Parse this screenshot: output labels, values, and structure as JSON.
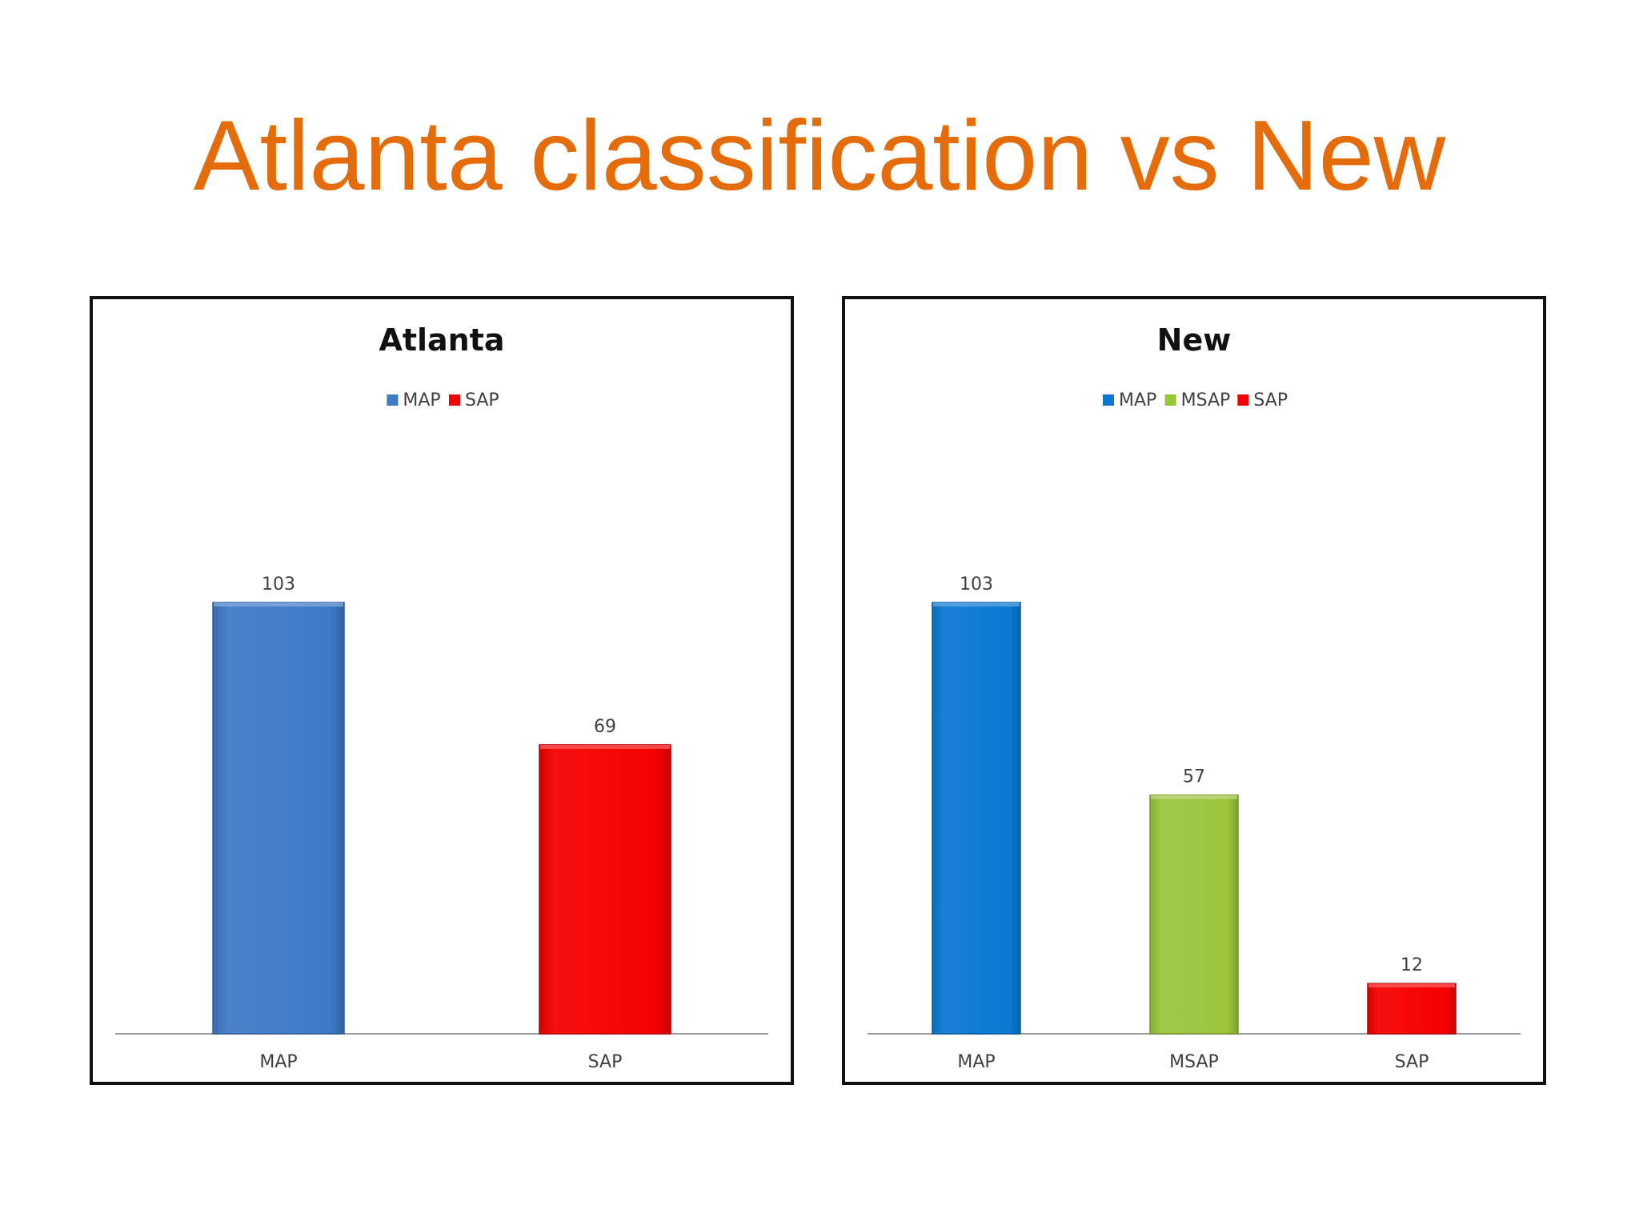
{
  "slide": {
    "title": "Atlanta classification vs New"
  },
  "chart_data": [
    {
      "type": "bar",
      "title": "Atlanta",
      "categories": [
        "MAP",
        "SAP"
      ],
      "values": [
        103,
        69
      ],
      "data_labels": [
        "103",
        "69"
      ],
      "colors": [
        "#3F7AC7",
        "#F50000"
      ],
      "legend": [
        {
          "name": "MAP",
          "color": "#3F7AC7"
        },
        {
          "name": "SAP",
          "color": "#F50000"
        }
      ],
      "legend_position": "top",
      "ylim": [
        0,
        120
      ],
      "grid": false,
      "xlabel": "",
      "ylabel": ""
    },
    {
      "type": "bar",
      "title": "New",
      "categories": [
        "MAP",
        "MSAP",
        "SAP"
      ],
      "values": [
        103,
        57,
        12
      ],
      "data_labels": [
        "103",
        "57",
        "12"
      ],
      "colors": [
        "#0A78D2",
        "#9BC53D",
        "#F50000"
      ],
      "legend": [
        {
          "name": "MAP",
          "color": "#0A78D2"
        },
        {
          "name": "MSAP",
          "color": "#9BC53D"
        },
        {
          "name": "SAP",
          "color": "#F50000"
        }
      ],
      "legend_position": "top",
      "ylim": [
        0,
        120
      ],
      "grid": false,
      "xlabel": "",
      "ylabel": ""
    }
  ]
}
